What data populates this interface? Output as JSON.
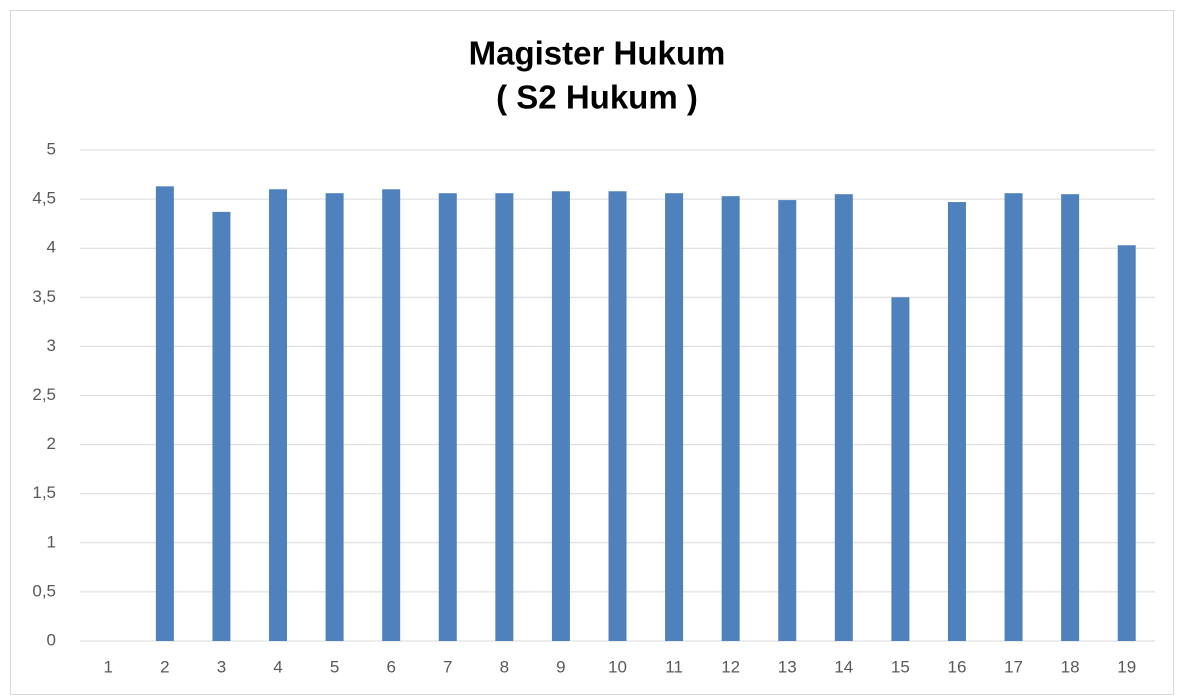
{
  "chart_data": {
    "type": "bar",
    "title": "Magister Hukum",
    "subtitle": "( S2 Hukum )",
    "categories": [
      "1",
      "2",
      "3",
      "4",
      "5",
      "6",
      "7",
      "8",
      "9",
      "10",
      "11",
      "12",
      "13",
      "14",
      "15",
      "16",
      "17",
      "18",
      "19"
    ],
    "values": [
      null,
      4.63,
      4.37,
      4.6,
      4.56,
      4.6,
      4.56,
      4.56,
      4.58,
      4.58,
      4.56,
      4.53,
      4.49,
      4.55,
      3.5,
      4.47,
      4.56,
      4.55,
      4.03
    ],
    "color": "#4f81bd",
    "ylim": [
      0,
      5
    ],
    "yticks": [
      0,
      {
        "value": 0.5,
        "label": "0,5"
      },
      1,
      {
        "value": 1.5,
        "label": "1,5"
      },
      2,
      {
        "value": 2.5,
        "label": "2,5"
      },
      3,
      {
        "value": 3.5,
        "label": "3,5"
      },
      4,
      {
        "value": 4.5,
        "label": "4,5"
      },
      5
    ],
    "grid": true
  }
}
